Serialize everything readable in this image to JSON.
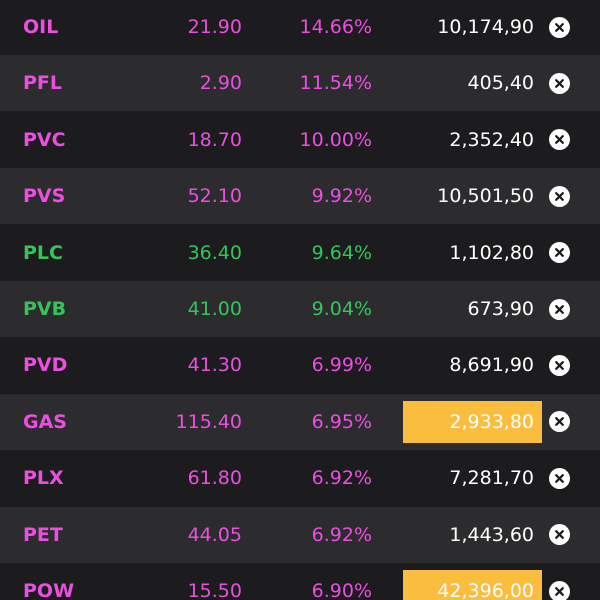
{
  "colors": {
    "up_strong": "#ea4fe0",
    "up": "#36c45a",
    "highlight": "#fbbd3e",
    "row_dark": "#1c1c1e",
    "row_light": "#2c2c2e"
  },
  "icons": {
    "remove": "close-circle-icon"
  },
  "rows": [
    {
      "symbol": "OIL",
      "price": "21.90",
      "change": "14.66%",
      "volume": "10,174,90",
      "color": "magenta",
      "highlight": false
    },
    {
      "symbol": "PFL",
      "price": "2.90",
      "change": "11.54%",
      "volume": "405,40",
      "color": "magenta",
      "highlight": false
    },
    {
      "symbol": "PVC",
      "price": "18.70",
      "change": "10.00%",
      "volume": "2,352,40",
      "color": "magenta",
      "highlight": false
    },
    {
      "symbol": "PVS",
      "price": "52.10",
      "change": "9.92%",
      "volume": "10,501,50",
      "color": "magenta",
      "highlight": false
    },
    {
      "symbol": "PLC",
      "price": "36.40",
      "change": "9.64%",
      "volume": "1,102,80",
      "color": "green",
      "highlight": false
    },
    {
      "symbol": "PVB",
      "price": "41.00",
      "change": "9.04%",
      "volume": "673,90",
      "color": "green",
      "highlight": false
    },
    {
      "symbol": "PVD",
      "price": "41.30",
      "change": "6.99%",
      "volume": "8,691,90",
      "color": "magenta",
      "highlight": false
    },
    {
      "symbol": "GAS",
      "price": "115.40",
      "change": "6.95%",
      "volume": "2,933,80",
      "color": "magenta",
      "highlight": true
    },
    {
      "symbol": "PLX",
      "price": "61.80",
      "change": "6.92%",
      "volume": "7,281,70",
      "color": "magenta",
      "highlight": false
    },
    {
      "symbol": "PET",
      "price": "44.05",
      "change": "6.92%",
      "volume": "1,443,60",
      "color": "magenta",
      "highlight": false
    },
    {
      "symbol": "POW",
      "price": "15.50",
      "change": "6.90%",
      "volume": "42,396,00",
      "color": "magenta",
      "highlight": true
    }
  ]
}
